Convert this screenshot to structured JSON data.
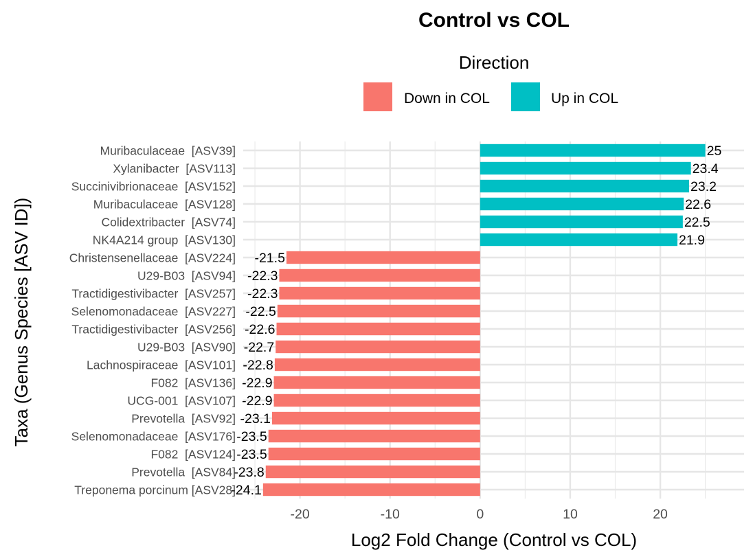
{
  "chart_data": {
    "type": "bar",
    "orientation": "horizontal",
    "title": "Control vs COL",
    "xlabel": "Log2 Fold Change (Control vs COL)",
    "ylabel": "Taxa (Genus Species [ASV ID])",
    "xlim": [
      -26.3,
      29.3
    ],
    "x_ticks": [
      -20,
      -10,
      0,
      10,
      20
    ],
    "x_tick_labels": [
      "-20",
      "-10",
      "0",
      "10",
      "20"
    ],
    "grid": true,
    "legend": {
      "title": "Direction",
      "position": "top",
      "entries": [
        {
          "label": "Down in COL",
          "color": "#F8766D"
        },
        {
          "label": "Up in COL",
          "color": "#00BFC4"
        }
      ]
    },
    "bars": [
      {
        "taxon": "Muribaculaceae  [ASV39]",
        "value": 25,
        "label": "25",
        "direction": "Up in COL"
      },
      {
        "taxon": "Xylanibacter  [ASV113]",
        "value": 23.4,
        "label": "23.4",
        "direction": "Up in COL"
      },
      {
        "taxon": "Succinivibrionaceae  [ASV152]",
        "value": 23.2,
        "label": "23.2",
        "direction": "Up in COL"
      },
      {
        "taxon": "Muribaculaceae  [ASV128]",
        "value": 22.6,
        "label": "22.6",
        "direction": "Up in COL"
      },
      {
        "taxon": "Colidextribacter  [ASV74]",
        "value": 22.5,
        "label": "22.5",
        "direction": "Up in COL"
      },
      {
        "taxon": "NK4A214 group  [ASV130]",
        "value": 21.9,
        "label": "21.9",
        "direction": "Up in COL"
      },
      {
        "taxon": "Christensenellaceae  [ASV224]",
        "value": -21.5,
        "label": "-21.5",
        "direction": "Down in COL"
      },
      {
        "taxon": "U29-B03  [ASV94]",
        "value": -22.3,
        "label": "-22.3",
        "direction": "Down in COL"
      },
      {
        "taxon": "Tractidigestivibacter  [ASV257]",
        "value": -22.3,
        "label": "-22.3",
        "direction": "Down in COL"
      },
      {
        "taxon": "Selenomonadaceae  [ASV227]",
        "value": -22.5,
        "label": "-22.5",
        "direction": "Down in COL"
      },
      {
        "taxon": "Tractidigestivibacter  [ASV256]",
        "value": -22.6,
        "label": "-22.6",
        "direction": "Down in COL"
      },
      {
        "taxon": "U29-B03  [ASV90]",
        "value": -22.7,
        "label": "-22.7",
        "direction": "Down in COL"
      },
      {
        "taxon": "Lachnospiraceae  [ASV101]",
        "value": -22.8,
        "label": "-22.8",
        "direction": "Down in COL"
      },
      {
        "taxon": "F082  [ASV136]",
        "value": -22.9,
        "label": "-22.9",
        "direction": "Down in COL"
      },
      {
        "taxon": "UCG-001  [ASV107]",
        "value": -22.9,
        "label": "-22.9",
        "direction": "Down in COL"
      },
      {
        "taxon": "Prevotella  [ASV92]",
        "value": -23.1,
        "label": "-23.1",
        "direction": "Down in COL"
      },
      {
        "taxon": "Selenomonadaceae  [ASV176]",
        "value": -23.5,
        "label": "-23.5",
        "direction": "Down in COL"
      },
      {
        "taxon": "F082  [ASV124]",
        "value": -23.5,
        "label": "-23.5",
        "direction": "Down in COL"
      },
      {
        "taxon": "Prevotella  [ASV84]",
        "value": -23.8,
        "label": "-23.8",
        "direction": "Down in COL"
      },
      {
        "taxon": "Treponema porcinum [ASV28]",
        "value": -24.1,
        "label": "-24.1",
        "direction": "Down in COL"
      }
    ]
  }
}
